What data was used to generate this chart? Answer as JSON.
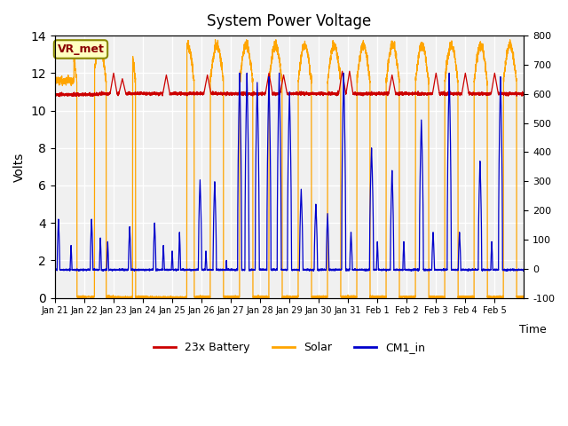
{
  "title": "System Power Voltage",
  "xlabel": "Time",
  "ylabel": "Volts",
  "ylim_left": [
    0,
    14
  ],
  "ylim_right": [
    -100,
    800
  ],
  "xtick_labels": [
    "Jan 21",
    "Jan 22",
    "Jan 23",
    "Jan 24",
    "Jan 25",
    "Jan 26",
    "Jan 27",
    "Jan 28",
    "Jan 29",
    "Jan 30",
    "Jan 31",
    "Feb 1",
    "Feb 2",
    "Feb 3",
    "Feb 4",
    "Feb 5"
  ],
  "yticks_left": [
    0,
    2,
    4,
    6,
    8,
    10,
    12,
    14
  ],
  "yticks_right": [
    -100,
    0,
    100,
    200,
    300,
    400,
    500,
    600,
    700,
    800
  ],
  "annotation_text": "VR_met",
  "annotation_color": "#8B0000",
  "annotation_bg": "#FFFFC0",
  "annotation_edge": "#888800",
  "bg_color": "#FFFFFF",
  "plot_bg_color": "#F0F0F0",
  "grid_color": "#FFFFFF",
  "battery_color": "#CC0000",
  "solar_color": "#FFA500",
  "cm1_color": "#0000CC",
  "legend_labels": [
    "23x Battery",
    "Solar",
    "CM1_in"
  ]
}
